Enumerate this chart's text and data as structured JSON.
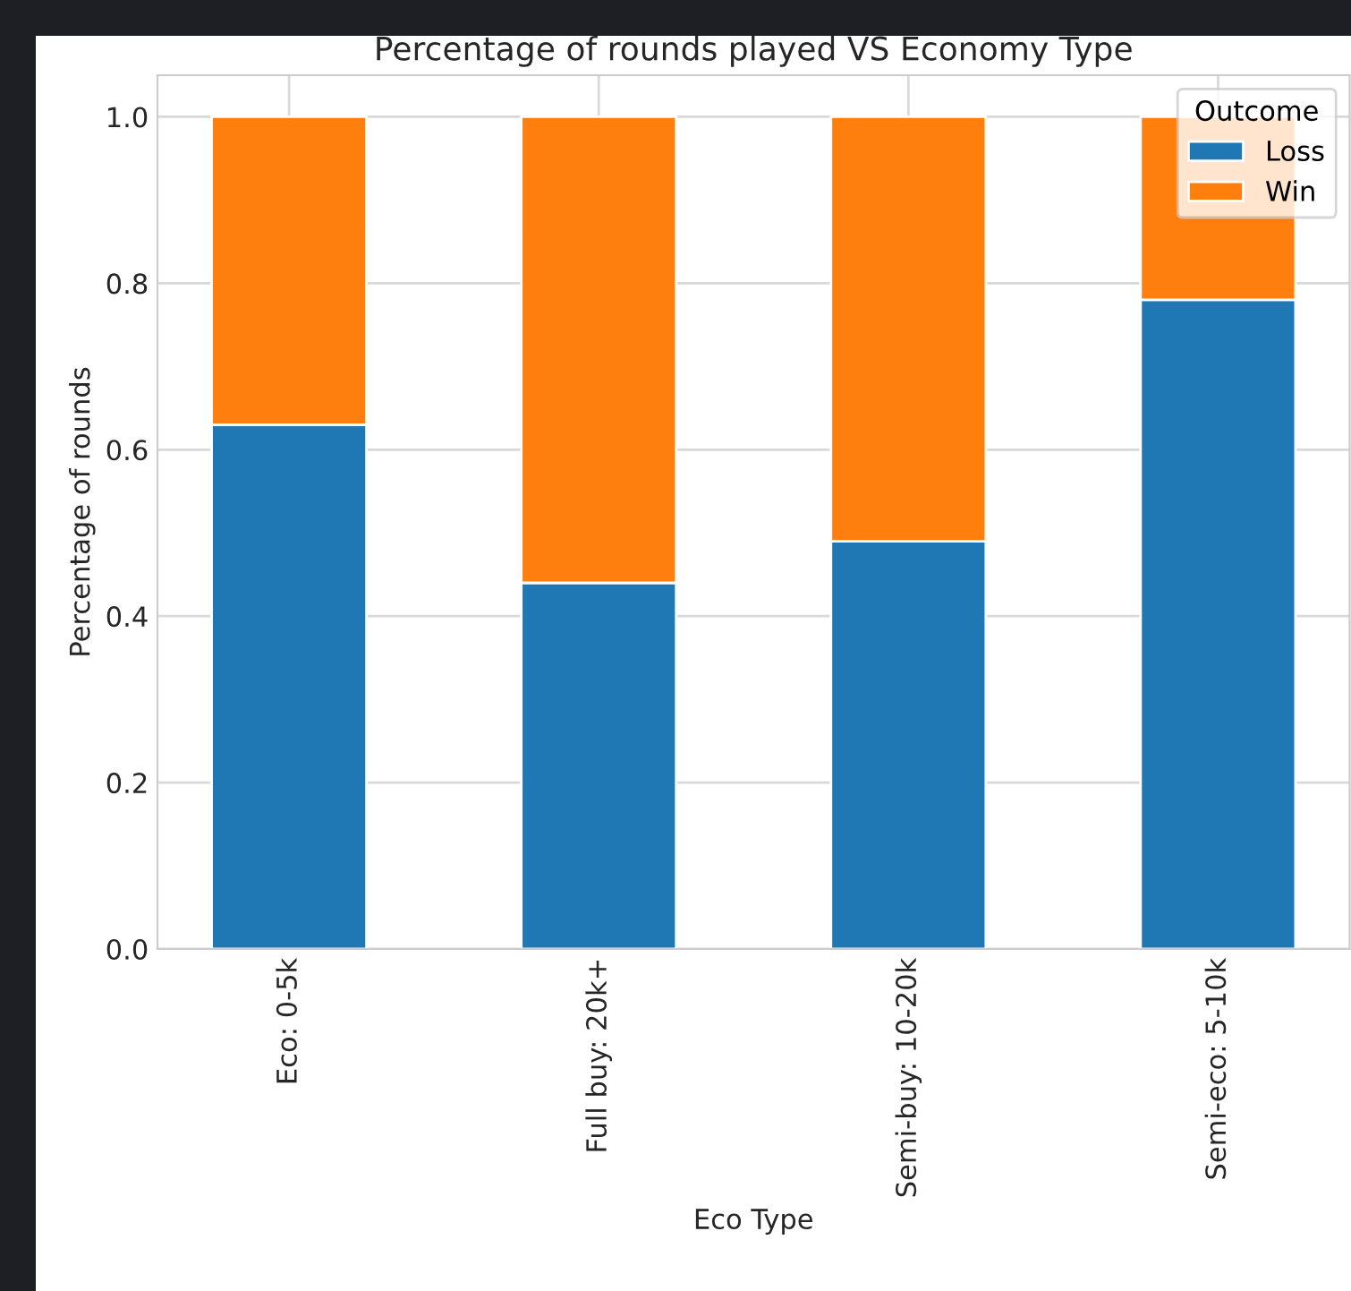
{
  "chart_data": {
    "type": "bar",
    "title": "Percentage of rounds played VS Economy Type",
    "xlabel": "Eco Type",
    "ylabel": "Percentage of rounds",
    "legend_title": "Outcome",
    "categories": [
      "Eco: 0-5k",
      "Full buy: 20k+",
      "Semi-buy: 10-20k",
      "Semi-eco: 5-10k"
    ],
    "stacked": true,
    "series": [
      {
        "name": "Loss",
        "color": "#1f77b4",
        "values": [
          0.63,
          0.44,
          0.49,
          0.78
        ]
      },
      {
        "name": "Win",
        "color": "#ff7f0e",
        "values": [
          0.37,
          0.56,
          0.51,
          0.22
        ]
      }
    ],
    "ylim": [
      0,
      1.05
    ],
    "yticks": [
      {
        "value": 0,
        "label": "0.0"
      },
      {
        "value": 0.2,
        "label": "0.2"
      },
      {
        "value": 0.4,
        "label": "0.4"
      },
      {
        "value": 0.6,
        "label": "0.6"
      },
      {
        "value": 0.8,
        "label": "0.8"
      },
      {
        "value": 1,
        "label": "1.0"
      }
    ],
    "grid": true,
    "legend": "top right"
  }
}
